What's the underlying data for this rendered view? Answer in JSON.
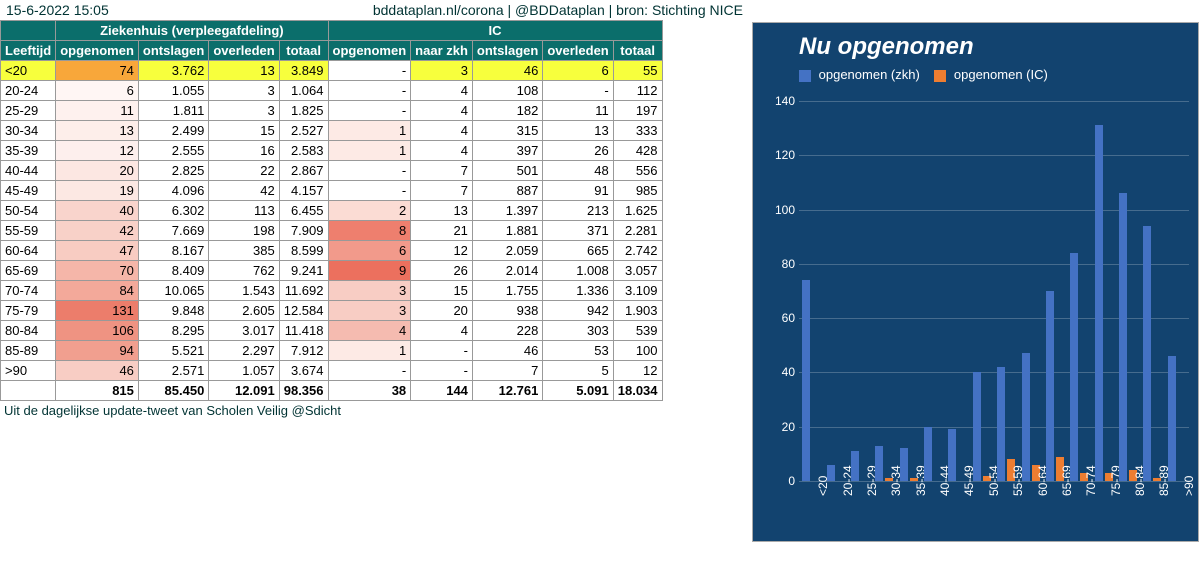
{
  "header": {
    "timestamp": "15-6-2022 15:05",
    "source": "bddataplan.nl/corona | @BDDataplan | bron: Stichting NICE"
  },
  "footer": "Uit de dagelijkse update-tweet van Scholen Veilig @Sdicht",
  "table": {
    "group1_label": "Ziekenhuis (verpleegafdeling)",
    "group2_label": "IC",
    "columns": [
      "Leeftijd",
      "opgenomen",
      "ontslagen",
      "overleden",
      "totaal",
      "opgenomen",
      "naar zkh",
      "ontslagen",
      "overleden",
      "totaal"
    ],
    "rows": [
      {
        "age": "<20",
        "z_op": "74",
        "z_ont": "3.762",
        "z_ov": "13",
        "z_tot": "3.849",
        "i_op": "-",
        "i_zkh": "3",
        "i_ont": "46",
        "i_ov": "6",
        "i_tot": "55",
        "hl": "yellow",
        "z_op_bg": "#f8a73a",
        "i_op_bg": "#ffffff"
      },
      {
        "age": "20-24",
        "z_op": "6",
        "z_ont": "1.055",
        "z_ov": "3",
        "z_tot": "1.064",
        "i_op": "-",
        "i_zkh": "4",
        "i_ont": "108",
        "i_ov": "-",
        "i_tot": "112",
        "z_op_bg": "#fff6f4",
        "i_op_bg": "#ffffff"
      },
      {
        "age": "25-29",
        "z_op": "11",
        "z_ont": "1.811",
        "z_ov": "3",
        "z_tot": "1.825",
        "i_op": "-",
        "i_zkh": "4",
        "i_ont": "182",
        "i_ov": "11",
        "i_tot": "197",
        "z_op_bg": "#fef1ee",
        "i_op_bg": "#ffffff"
      },
      {
        "age": "30-34",
        "z_op": "13",
        "z_ont": "2.499",
        "z_ov": "15",
        "z_tot": "2.527",
        "i_op": "1",
        "i_zkh": "4",
        "i_ont": "315",
        "i_ov": "13",
        "i_tot": "333",
        "z_op_bg": "#fdeeea",
        "i_op_bg": "#fdeae5"
      },
      {
        "age": "35-39",
        "z_op": "12",
        "z_ont": "2.555",
        "z_ov": "16",
        "z_tot": "2.583",
        "i_op": "1",
        "i_zkh": "4",
        "i_ont": "397",
        "i_ov": "26",
        "i_tot": "428",
        "z_op_bg": "#fdefeD",
        "i_op_bg": "#fdeae5"
      },
      {
        "age": "40-44",
        "z_op": "20",
        "z_ont": "2.825",
        "z_ov": "22",
        "z_tot": "2.867",
        "i_op": "-",
        "i_zkh": "7",
        "i_ont": "501",
        "i_ov": "48",
        "i_tot": "556",
        "z_op_bg": "#fce7e2",
        "i_op_bg": "#ffffff"
      },
      {
        "age": "45-49",
        "z_op": "19",
        "z_ont": "4.096",
        "z_ov": "42",
        "z_tot": "4.157",
        "i_op": "-",
        "i_zkh": "7",
        "i_ont": "887",
        "i_ov": "91",
        "i_tot": "985",
        "z_op_bg": "#fce8e3",
        "i_op_bg": "#ffffff"
      },
      {
        "age": "50-54",
        "z_op": "40",
        "z_ont": "6.302",
        "z_ov": "113",
        "z_tot": "6.455",
        "i_op": "2",
        "i_zkh": "13",
        "i_ont": "1.397",
        "i_ov": "213",
        "i_tot": "1.625",
        "z_op_bg": "#f9d4cc",
        "i_op_bg": "#fbdcd4"
      },
      {
        "age": "55-59",
        "z_op": "42",
        "z_ont": "7.669",
        "z_ov": "198",
        "z_tot": "7.909",
        "i_op": "8",
        "i_zkh": "21",
        "i_ont": "1.881",
        "i_ov": "371",
        "i_tot": "2.281",
        "z_op_bg": "#f8d1c8",
        "i_op_bg": "#ee7f6e"
      },
      {
        "age": "60-64",
        "z_op": "47",
        "z_ont": "8.167",
        "z_ov": "385",
        "z_tot": "8.599",
        "i_op": "6",
        "i_zkh": "12",
        "i_ont": "2.059",
        "i_ov": "665",
        "i_tot": "2.742",
        "z_op_bg": "#f8ccc2",
        "i_op_bg": "#f29a8b"
      },
      {
        "age": "65-69",
        "z_op": "70",
        "z_ont": "8.409",
        "z_ov": "762",
        "z_tot": "9.241",
        "i_op": "9",
        "i_zkh": "26",
        "i_ont": "2.014",
        "i_ov": "1.008",
        "i_tot": "3.057",
        "z_op_bg": "#f5b6a9",
        "i_op_bg": "#ec705e"
      },
      {
        "age": "70-74",
        "z_op": "84",
        "z_ont": "10.065",
        "z_ov": "1.543",
        "z_tot": "11.692",
        "i_op": "3",
        "i_zkh": "15",
        "i_ont": "1.755",
        "i_ov": "1.336",
        "i_tot": "3.109",
        "z_op_bg": "#f3a99a",
        "i_op_bg": "#f8cdc4"
      },
      {
        "age": "75-79",
        "z_op": "131",
        "z_ont": "9.848",
        "z_ov": "2.605",
        "z_tot": "12.584",
        "i_op": "3",
        "i_zkh": "20",
        "i_ont": "938",
        "i_ov": "942",
        "i_tot": "1.903",
        "z_op_bg": "#ec7d6b",
        "i_op_bg": "#f8cdc4"
      },
      {
        "age": "80-84",
        "z_op": "106",
        "z_ont": "8.295",
        "z_ov": "3.017",
        "z_tot": "11.418",
        "i_op": "4",
        "i_zkh": "4",
        "i_ont": "228",
        "i_ov": "303",
        "i_tot": "539",
        "z_op_bg": "#ef9382",
        "i_op_bg": "#f5bbb0"
      },
      {
        "age": "85-89",
        "z_op": "94",
        "z_ont": "5.521",
        "z_ov": "2.297",
        "z_tot": "7.912",
        "i_op": "1",
        "i_zkh": "-",
        "i_ont": "46",
        "i_ov": "53",
        "i_tot": "100",
        "z_op_bg": "#f19f8f",
        "i_op_bg": "#fdeae5"
      },
      {
        "age": ">90",
        "z_op": "46",
        "z_ont": "2.571",
        "z_ov": "1.057",
        "z_tot": "3.674",
        "i_op": "-",
        "i_zkh": "-",
        "i_ont": "7",
        "i_ov": "5",
        "i_tot": "12",
        "z_op_bg": "#f8cdc4",
        "i_op_bg": "#ffffff"
      }
    ],
    "totals": {
      "z_op": "815",
      "z_ont": "85.450",
      "z_ov": "12.091",
      "z_tot": "98.356",
      "i_op": "38",
      "i_zkh": "144",
      "i_ont": "12.761",
      "i_ov": "5.091",
      "i_tot": "18.034"
    }
  },
  "chart": {
    "title": "Nu opgenomen",
    "background": "#12436f",
    "series": [
      {
        "label": "opgenomen (zkh)",
        "color": "#4472c4"
      },
      {
        "label": "opgenomen (IC)",
        "color": "#ed7d31"
      }
    ],
    "ymax": 140,
    "ytick_step": 20,
    "categories": [
      "<20",
      "20-24",
      "25-29",
      "30-34",
      "35-39",
      "40-44",
      "45-49",
      "50-54",
      "55-59",
      "60-64",
      "65-69",
      "70-74",
      "75-79",
      "80-84",
      "85-89",
      ">90"
    ],
    "zkh_values": [
      74,
      6,
      11,
      13,
      12,
      20,
      19,
      40,
      42,
      47,
      70,
      84,
      131,
      106,
      94,
      46
    ],
    "ic_values": [
      0,
      0,
      0,
      1,
      1,
      0,
      0,
      2,
      8,
      6,
      9,
      3,
      3,
      4,
      1,
      0
    ]
  },
  "colors": {
    "teal_header": "#0b6e6b",
    "yellow_hl": "#f7ff3d",
    "orange_hl": "#f8a73a"
  }
}
